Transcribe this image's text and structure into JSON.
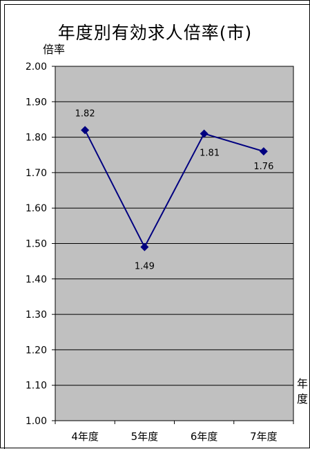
{
  "chart_data": {
    "type": "line",
    "title": "年度別有効求人倍率(市)",
    "ylabel": "倍率",
    "xlabel": "年度",
    "categories": [
      "4年度",
      "5年度",
      "6年度",
      "7年度"
    ],
    "series": [
      {
        "values": [
          1.82,
          1.49,
          1.81,
          1.76
        ],
        "labels": [
          "1.82",
          "1.49",
          "1.81",
          "1.76"
        ]
      }
    ],
    "ylim": [
      1.0,
      2.0
    ],
    "yticks": [
      "1.00",
      "1.10",
      "1.20",
      "1.30",
      "1.40",
      "1.50",
      "1.60",
      "1.70",
      "1.80",
      "1.90",
      "2.00"
    ],
    "grid": true,
    "colors": {
      "plot_bg": "#c0c0c0",
      "line": "#000080",
      "grid": "#000000"
    }
  }
}
